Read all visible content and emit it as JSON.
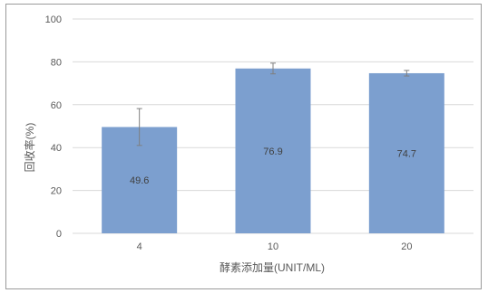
{
  "chart_data": {
    "type": "bar",
    "title": "",
    "xlabel": "酵素添加量(UNIT/ML)",
    "ylabel": "回收率(%)",
    "categories": [
      "4",
      "10",
      "20"
    ],
    "values": [
      49.6,
      76.9,
      74.7
    ],
    "error_bars": [
      8.6,
      2.5,
      1.3
    ],
    "data_labels": [
      "49.6",
      "76.9",
      "74.7"
    ],
    "ylim": [
      0,
      100
    ],
    "yticks": [
      "0",
      "20",
      "40",
      "60",
      "80",
      "100"
    ],
    "grid": true,
    "legend": "none",
    "colors": {
      "bar": "#7c9fcf",
      "grid": "#d9d9d9",
      "error": "#7f7f7f"
    }
  }
}
